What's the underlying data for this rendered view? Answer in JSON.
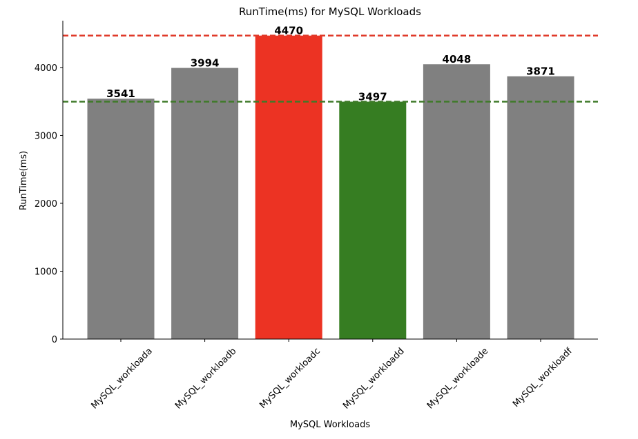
{
  "chart_data": {
    "type": "bar",
    "title": "RunTime(ms) for MySQL Workloads",
    "xlabel": "MySQL Workloads",
    "ylabel": "RunTime(ms)",
    "categories": [
      "MySQL_workloada",
      "MySQL_workloadb",
      "MySQL_workloadc",
      "MySQL_workloadd",
      "MySQL_workloade",
      "MySQL_workloadf"
    ],
    "values": [
      3541,
      3994,
      4470,
      3497,
      4048,
      3871
    ],
    "data_labels": [
      "3541",
      "3994",
      "4470",
      "3497",
      "4048",
      "3871"
    ],
    "bar_colors": [
      "#808080",
      "#808080",
      "#ec3323",
      "#367d22",
      "#808080",
      "#808080"
    ],
    "ylim": [
      0,
      4690
    ],
    "yticks": [
      0,
      1000,
      2000,
      3000,
      4000
    ],
    "ytick_labels": [
      "0",
      "1000",
      "2000",
      "3000",
      "4000"
    ],
    "reference_lines": [
      {
        "value": 4470,
        "color": "#e03a2a",
        "style": "dashed"
      },
      {
        "value": 3497,
        "color": "#3e7a28",
        "style": "dashed"
      }
    ],
    "grid": false,
    "legend": "none"
  }
}
